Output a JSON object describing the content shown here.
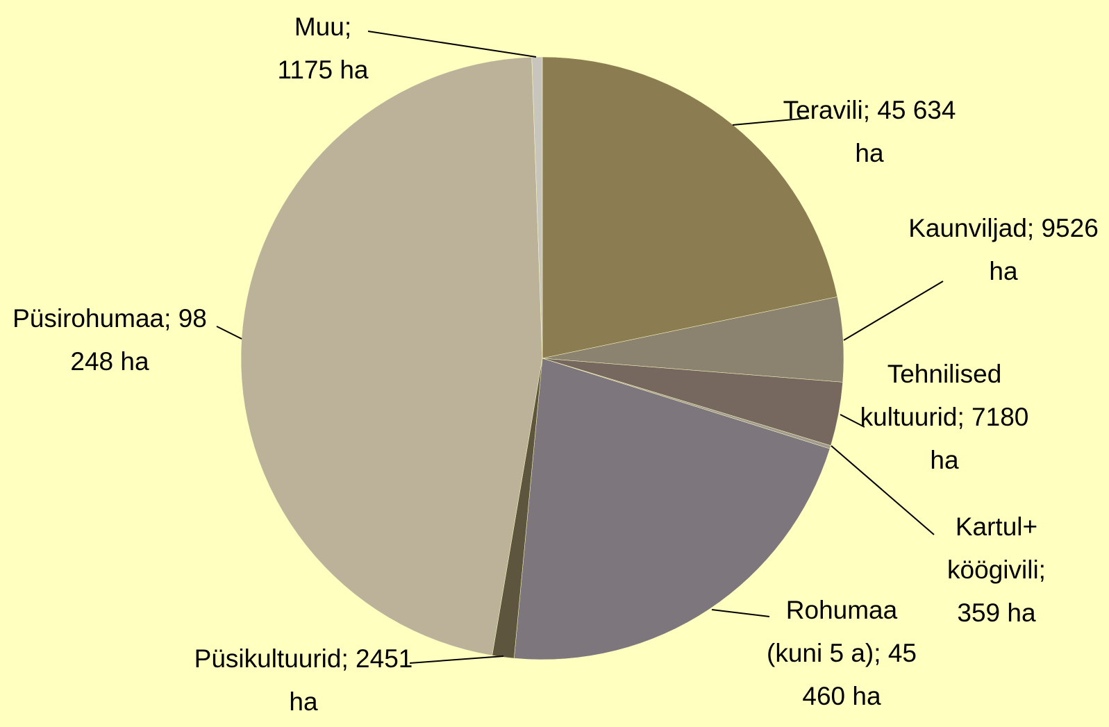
{
  "chart_data": {
    "type": "pie",
    "categories": [
      "Teravili",
      "Kaunviljad",
      "Tehnilised kultuurid",
      "Kartul+ köögivili",
      "Rohumaa (kuni 5 a)",
      "Püsikultuurid",
      "Püsirohumaa",
      "Muu"
    ],
    "values": [
      45634,
      9526,
      7180,
      359,
      45460,
      2451,
      98248,
      1175
    ],
    "value_labels": [
      "45 634 ha",
      "9526 ha",
      "7180 ha",
      "359 ha",
      "45 460 ha",
      "2451 ha",
      "98 248 ha",
      "1175 ha"
    ],
    "label_separator": ";",
    "colors": [
      "#8b7d51",
      "#8b8370",
      "#76685e",
      "#a09a90",
      "#7d777d",
      "#5e553f",
      "#bcb199",
      "#c8c5bd"
    ]
  }
}
